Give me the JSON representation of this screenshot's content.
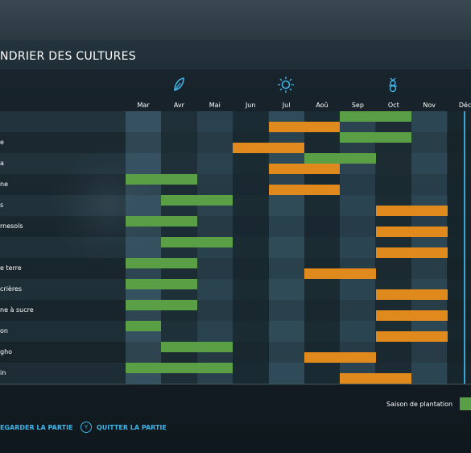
{
  "header": {
    "title": "NDRIER DES CULTURES"
  },
  "months": [
    "Mar",
    "Avr",
    "Mai",
    "Jun",
    "Jul",
    "Aoû",
    "Sep",
    "Oct",
    "Nov",
    "Déc"
  ],
  "season_icons": [
    {
      "name": "spring-leaf-icon",
      "month_index": 1
    },
    {
      "name": "summer-sun-icon",
      "month_index": 4
    },
    {
      "name": "autumn-icon",
      "month_index": 7
    }
  ],
  "colors": {
    "plant": "#5a9e46",
    "harvest": "#e08a1e",
    "accent": "#3fb4e6"
  },
  "crops": [
    {
      "label": "",
      "plant": [
        [
          6,
          8
        ]
      ],
      "harvest": [
        [
          4,
          6
        ]
      ]
    },
    {
      "label": "e",
      "plant": [
        [
          6,
          8
        ]
      ],
      "harvest": [
        [
          3,
          5
        ]
      ]
    },
    {
      "label": "a",
      "plant": [
        [
          5,
          7
        ]
      ],
      "harvest": [
        [
          4,
          6
        ]
      ]
    },
    {
      "label": "ne",
      "plant": [
        [
          0,
          2
        ]
      ],
      "harvest": [
        [
          4,
          6
        ]
      ]
    },
    {
      "label": "s",
      "plant": [
        [
          1,
          3
        ]
      ],
      "harvest": [
        [
          7,
          9
        ]
      ]
    },
    {
      "label": "rnesols",
      "plant": [
        [
          0,
          2
        ]
      ],
      "harvest": [
        [
          7,
          9
        ]
      ]
    },
    {
      "label": "",
      "plant": [
        [
          1,
          3
        ]
      ],
      "harvest": [
        [
          7,
          9
        ]
      ]
    },
    {
      "label": "e terre",
      "plant": [
        [
          0,
          2
        ]
      ],
      "harvest": [
        [
          5,
          7
        ]
      ]
    },
    {
      "label": "crières",
      "plant": [
        [
          0,
          2
        ]
      ],
      "harvest": [
        [
          7,
          9
        ]
      ]
    },
    {
      "label": "ne à sucre",
      "plant": [
        [
          0,
          2
        ]
      ],
      "harvest": [
        [
          7,
          9
        ]
      ]
    },
    {
      "label": "on",
      "plant": [
        [
          0,
          1
        ]
      ],
      "harvest": [
        [
          7,
          9
        ]
      ]
    },
    {
      "label": "gho",
      "plant": [
        [
          1,
          3
        ]
      ],
      "harvest": [
        [
          5,
          7
        ]
      ]
    },
    {
      "label": "in",
      "plant": [
        [
          0,
          3
        ]
      ],
      "harvest": [
        [
          6,
          8
        ]
      ]
    }
  ],
  "legend": {
    "plant_label": "Saison de plantation"
  },
  "footer": {
    "save_label": "EGARDER LA PARTIE",
    "quit_key": "Y",
    "quit_label": "QUITTER LA PARTIE"
  }
}
